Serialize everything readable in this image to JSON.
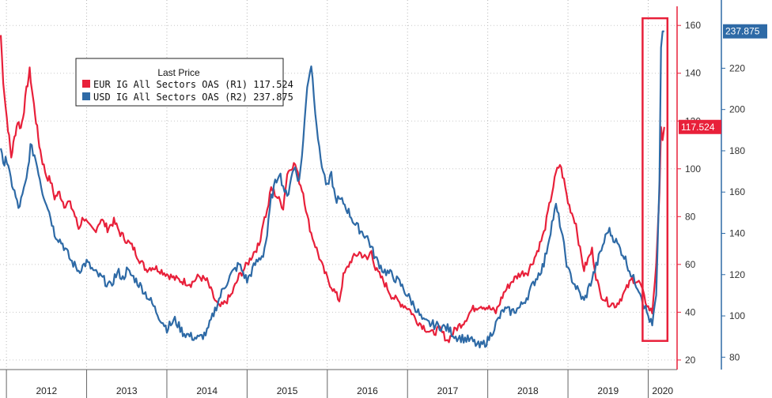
{
  "chart_data": {
    "type": "line",
    "title": "",
    "legend": {
      "title": "Last Price",
      "placement": "top-left",
      "entries": [
        {
          "label": "EUR IG All Sectors OAS  (R1) 117.524",
          "color": "#e8203a"
        },
        {
          "label": "USD IG All Sectors OAS  (R2) 237.875",
          "color": "#2e6aa6"
        }
      ]
    },
    "x_labels": [
      "2012",
      "2013",
      "2014",
      "2015",
      "2016",
      "2017",
      "2018",
      "2019",
      "2020"
    ],
    "x_range": [
      2011.92,
      2020.36
    ],
    "axis_r1": {
      "ylim": [
        16,
        168
      ],
      "ticks": [
        20,
        40,
        60,
        80,
        100,
        120,
        140,
        160
      ],
      "tick_labels": [
        "20",
        "40",
        "60",
        "80",
        "100",
        "120",
        "140",
        "160"
      ],
      "color": "#e8203a"
    },
    "axis_r2": {
      "ylim": [
        74,
        250
      ],
      "ticks": [
        80,
        100,
        120,
        140,
        160,
        180,
        200,
        220
      ],
      "tick_labels": [
        "80",
        "100",
        "120",
        "140",
        "160",
        "180",
        "200",
        "220"
      ],
      "color": "#2e6aa6"
    },
    "last_value_tags": [
      {
        "series": "EUR IG All Sectors OAS",
        "axis": "R1",
        "text": "117.524",
        "value": 117.524,
        "color": "#e8203a"
      },
      {
        "series": "USD IG All Sectors OAS",
        "axis": "R2",
        "text": "237.875",
        "value": 237.875,
        "color": "#2e6aa6"
      }
    ],
    "highlight_box": {
      "x_range": [
        2019.93,
        2020.24
      ],
      "y_r1_range": [
        28,
        163
      ],
      "color": "#e8203a"
    },
    "series": [
      {
        "name": "EUR IG All Sectors OAS",
        "axis": "R1",
        "color": "#e8203a",
        "x": [
          2011.93,
          2011.96,
          2011.99,
          2012.02,
          2012.06,
          2012.1,
          2012.14,
          2012.18,
          2012.22,
          2012.25,
          2012.29,
          2012.33,
          2012.37,
          2012.41,
          2012.45,
          2012.5,
          2012.55,
          2012.6,
          2012.66,
          2012.72,
          2012.78,
          2012.84,
          2012.9,
          2012.96,
          2013.02,
          2013.1,
          2013.18,
          2013.26,
          2013.34,
          2013.42,
          2013.5,
          2013.58,
          2013.66,
          2013.74,
          2013.82,
          2013.9,
          2014.0,
          2014.1,
          2014.2,
          2014.3,
          2014.4,
          2014.5,
          2014.6,
          2014.65,
          2014.7,
          2014.8,
          2014.9,
          2015.0,
          2015.1,
          2015.15,
          2015.2,
          2015.25,
          2015.3,
          2015.38,
          2015.45,
          2015.5,
          2015.55,
          2015.6,
          2015.65,
          2015.7,
          2015.75,
          2015.8,
          2015.85,
          2015.9,
          2015.95,
          2016.0,
          2016.1,
          2016.15,
          2016.2,
          2016.3,
          2016.4,
          2016.5,
          2016.55,
          2016.6,
          2016.7,
          2016.8,
          2016.9,
          2017.0,
          2017.05,
          2017.1,
          2017.2,
          2017.3,
          2017.4,
          2017.5,
          2017.6,
          2017.7,
          2017.8,
          2017.9,
          2018.0,
          2018.1,
          2018.2,
          2018.3,
          2018.4,
          2018.5,
          2018.6,
          2018.7,
          2018.8,
          2018.85,
          2018.9,
          2018.95,
          2019.0,
          2019.1,
          2019.15,
          2019.2,
          2019.25,
          2019.3,
          2019.35,
          2019.4,
          2019.5,
          2019.6,
          2019.7,
          2019.8,
          2019.9,
          2019.95,
          2020.0,
          2020.05,
          2020.1,
          2020.14,
          2020.16,
          2020.18,
          2020.2
        ],
        "values": [
          156,
          137,
          126,
          117,
          105,
          113,
          120,
          117,
          125,
          133,
          141,
          130,
          120,
          110,
          103,
          97,
          95,
          88,
          90,
          85,
          86,
          82,
          75,
          80,
          76,
          74,
          79,
          75,
          78,
          73,
          70,
          67,
          62,
          58,
          59,
          58,
          56,
          54,
          53,
          52,
          55,
          53,
          45,
          42,
          43,
          47,
          55,
          60,
          66,
          68,
          78,
          82,
          92,
          88,
          84,
          98,
          101,
          102,
          95,
          90,
          80,
          73,
          68,
          63,
          58,
          54,
          48,
          45,
          55,
          62,
          65,
          62,
          66,
          58,
          53,
          47,
          44,
          42,
          40,
          37,
          34,
          31,
          33,
          28,
          33,
          36,
          41,
          43,
          42,
          40,
          48,
          53,
          56,
          57,
          64,
          73,
          90,
          98,
          102,
          95,
          86,
          77,
          66,
          58,
          62,
          66,
          55,
          48,
          44,
          43,
          48,
          54,
          52,
          46,
          42,
          40,
          60,
          90,
          117.524,
          112,
          117.524
        ]
      },
      {
        "name": "USD IG All Sectors OAS",
        "axis": "R2",
        "color": "#2e6aa6",
        "x": [
          2011.93,
          2011.96,
          2011.99,
          2012.04,
          2012.1,
          2012.15,
          2012.2,
          2012.25,
          2012.3,
          2012.35,
          2012.4,
          2012.45,
          2012.5,
          2012.55,
          2012.6,
          2012.7,
          2012.8,
          2012.9,
          2013.0,
          2013.1,
          2013.2,
          2013.3,
          2013.35,
          2013.4,
          2013.45,
          2013.5,
          2013.6,
          2013.7,
          2013.8,
          2013.9,
          2014.0,
          2014.1,
          2014.2,
          2014.3,
          2014.4,
          2014.5,
          2014.6,
          2014.7,
          2014.8,
          2014.9,
          2015.0,
          2015.1,
          2015.2,
          2015.25,
          2015.3,
          2015.35,
          2015.4,
          2015.45,
          2015.5,
          2015.55,
          2015.6,
          2015.65,
          2015.7,
          2015.75,
          2015.8,
          2015.85,
          2015.9,
          2015.95,
          2016.0,
          2016.05,
          2016.1,
          2016.2,
          2016.3,
          2016.35,
          2016.4,
          2016.5,
          2016.6,
          2016.7,
          2016.8,
          2016.9,
          2017.0,
          2017.1,
          2017.2,
          2017.3,
          2017.4,
          2017.5,
          2017.6,
          2017.7,
          2017.8,
          2017.9,
          2018.0,
          2018.1,
          2018.2,
          2018.3,
          2018.4,
          2018.5,
          2018.6,
          2018.7,
          2018.8,
          2018.85,
          2018.9,
          2019.0,
          2019.1,
          2019.2,
          2019.3,
          2019.4,
          2019.5,
          2019.6,
          2019.7,
          2019.8,
          2019.9,
          2019.95,
          2020.0,
          2020.05,
          2020.1,
          2020.14,
          2020.16,
          2020.18,
          2020.2
        ],
        "values": [
          182,
          172,
          178,
          168,
          160,
          152,
          158,
          166,
          182,
          178,
          170,
          160,
          155,
          148,
          140,
          135,
          127,
          122,
          126,
          121,
          118,
          114,
          119,
          121,
          118,
          122,
          118,
          113,
          107,
          100,
          94,
          98,
          92,
          90,
          89,
          92,
          103,
          113,
          120,
          125,
          117,
          125,
          130,
          139,
          157,
          164,
          170,
          163,
          157,
          168,
          172,
          165,
          185,
          212,
          222,
          200,
          180,
          170,
          162,
          168,
          157,
          155,
          148,
          144,
          142,
          138,
          128,
          122,
          120,
          116,
          110,
          104,
          97,
          96,
          95,
          94,
          90,
          89,
          88,
          85,
          88,
          96,
          103,
          102,
          104,
          110,
          118,
          125,
          145,
          153,
          145,
          122,
          114,
          107,
          118,
          130,
          142,
          136,
          129,
          119,
          112,
          105,
          100,
          95,
          110,
          165,
          230,
          237.875,
          237.875
        ]
      }
    ]
  }
}
